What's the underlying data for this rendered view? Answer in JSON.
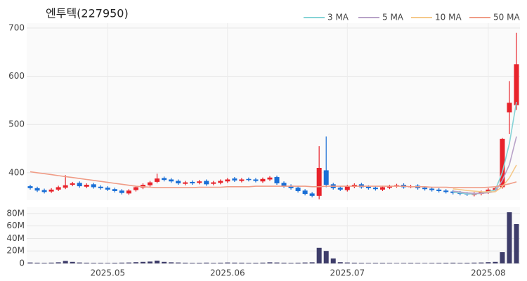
{
  "chart_data": {
    "type": "candlestick",
    "title": "엔투텍(227950)",
    "categories": [
      null,
      null,
      null,
      null,
      null,
      null,
      null,
      null,
      null,
      null,
      null,
      "2025.05",
      null,
      null,
      null,
      null,
      null,
      null,
      null,
      null,
      null,
      null,
      null,
      null,
      null,
      null,
      null,
      null,
      "2025.06",
      null,
      null,
      null,
      null,
      null,
      null,
      null,
      null,
      null,
      null,
      null,
      null,
      null,
      null,
      null,
      null,
      "2025.07",
      null,
      null,
      null,
      null,
      null,
      null,
      null,
      null,
      null,
      null,
      null,
      null,
      null,
      null,
      null,
      null,
      null,
      null,
      null,
      "2025.08",
      null,
      null,
      null,
      null
    ],
    "open": [
      372,
      368,
      364,
      361,
      365,
      369,
      375,
      379,
      371,
      376,
      371,
      369,
      366,
      363,
      357,
      364,
      369,
      374,
      381,
      389,
      386,
      383,
      377,
      381,
      379,
      383,
      377,
      379,
      382,
      388,
      383,
      387,
      386,
      382,
      386,
      391,
      379,
      373,
      369,
      363,
      357,
      352,
      405,
      376,
      369,
      364,
      371,
      376,
      371,
      369,
      365,
      369,
      372,
      375,
      371,
      373,
      369,
      367,
      365,
      363,
      361,
      359,
      357,
      354,
      356,
      359,
      363,
      370,
      525,
      540
    ],
    "high": [
      375,
      371,
      367,
      368,
      373,
      395,
      381,
      382,
      378,
      379,
      374,
      372,
      369,
      366,
      366,
      373,
      378,
      383,
      398,
      392,
      389,
      386,
      383,
      384,
      385,
      386,
      383,
      386,
      389,
      391,
      389,
      390,
      389,
      390,
      393,
      394,
      382,
      376,
      372,
      366,
      360,
      455,
      475,
      379,
      372,
      375,
      378,
      379,
      374,
      372,
      373,
      375,
      377,
      378,
      375,
      376,
      372,
      370,
      368,
      366,
      364,
      362,
      360,
      360,
      363,
      368,
      371,
      472,
      590,
      690
    ],
    "low": [
      365,
      360,
      357,
      358,
      362,
      366,
      372,
      369,
      368,
      367,
      365,
      362,
      359,
      355,
      354,
      361,
      366,
      371,
      378,
      382,
      379,
      375,
      374,
      375,
      376,
      373,
      374,
      376,
      379,
      381,
      380,
      382,
      380,
      379,
      383,
      375,
      369,
      365,
      359,
      353,
      349,
      345,
      370,
      365,
      362,
      361,
      368,
      367,
      365,
      363,
      362,
      366,
      369,
      367,
      368,
      365,
      363,
      361,
      359,
      357,
      355,
      353,
      352,
      351,
      353,
      356,
      360,
      367,
      480,
      530
    ],
    "close": [
      368,
      363,
      360,
      365,
      370,
      374,
      378,
      372,
      375,
      370,
      368,
      365,
      362,
      358,
      363,
      370,
      375,
      380,
      388,
      385,
      382,
      378,
      380,
      378,
      382,
      376,
      380,
      383,
      386,
      384,
      386,
      385,
      383,
      387,
      390,
      378,
      372,
      368,
      362,
      356,
      352,
      410,
      375,
      368,
      365,
      372,
      375,
      370,
      368,
      366,
      370,
      372,
      374,
      370,
      372,
      368,
      366,
      364,
      362,
      360,
      358,
      356,
      355,
      357,
      360,
      365,
      368,
      470,
      545,
      625
    ],
    "up_color": "#e8232b",
    "down_color": "#1a6fd6",
    "ylim": [
      343,
      710
    ],
    "yticks": [
      400,
      500,
      600,
      700
    ],
    "series": [
      {
        "name": "3 MA",
        "color": "#86d3d6",
        "values": [
          null,
          null,
          null,
          null,
          null,
          null,
          null,
          null,
          null,
          null,
          null,
          null,
          null,
          null,
          null,
          null,
          null,
          null,
          null,
          null,
          null,
          null,
          null,
          null,
          null,
          null,
          null,
          null,
          null,
          null,
          null,
          null,
          null,
          null,
          null,
          null,
          null,
          null,
          null,
          null,
          null,
          null,
          null,
          null,
          null,
          null,
          null,
          null,
          null,
          null,
          null,
          null,
          null,
          null,
          null,
          null,
          null,
          null,
          null,
          null,
          360,
          358,
          356.3,
          356,
          357.3,
          360.7,
          364.3,
          401,
          461,
          546.7
        ]
      },
      {
        "name": "5 MA",
        "color": "#b8a2c8",
        "values": [
          null,
          null,
          null,
          null,
          null,
          null,
          null,
          null,
          null,
          null,
          null,
          null,
          null,
          null,
          null,
          null,
          null,
          null,
          null,
          null,
          null,
          null,
          null,
          null,
          null,
          null,
          null,
          null,
          null,
          null,
          null,
          null,
          null,
          null,
          null,
          null,
          null,
          null,
          null,
          null,
          null,
          null,
          null,
          null,
          null,
          null,
          null,
          null,
          null,
          null,
          null,
          null,
          null,
          null,
          null,
          null,
          null,
          null,
          null,
          null,
          362,
          360,
          358.2,
          357.2,
          357.2,
          358.6,
          361,
          384,
          417,
          475
        ]
      },
      {
        "name": "10 MA",
        "color": "#f5c98a",
        "values": [
          null,
          null,
          null,
          null,
          null,
          null,
          null,
          null,
          null,
          null,
          null,
          null,
          null,
          null,
          null,
          null,
          null,
          null,
          null,
          null,
          null,
          null,
          null,
          null,
          null,
          null,
          null,
          null,
          null,
          null,
          null,
          null,
          null,
          null,
          null,
          null,
          null,
          null,
          null,
          null,
          null,
          null,
          null,
          null,
          null,
          null,
          null,
          null,
          null,
          null,
          null,
          null,
          null,
          null,
          null,
          null,
          null,
          null,
          null,
          null,
          366.6,
          365,
          363.1,
          361.8,
          360.6,
          360.3,
          360.5,
          371.1,
          389.4,
          415.9
        ]
      },
      {
        "name": "50 MA",
        "color": "#f09c86",
        "values": [
          402,
          400,
          398,
          396,
          394,
          392,
          390,
          388,
          386,
          384,
          382,
          380,
          378,
          376,
          374,
          372,
          371,
          370,
          369,
          369,
          369,
          369,
          369,
          369,
          370,
          370,
          370,
          370,
          371,
          371,
          371,
          371,
          372,
          372,
          372,
          372,
          372,
          372,
          372,
          372,
          371,
          371,
          372,
          372,
          372,
          372,
          372,
          372,
          372,
          372,
          372,
          372,
          372,
          372,
          371,
          371,
          371,
          370,
          370,
          370,
          369,
          369,
          369,
          369,
          369,
          370,
          371,
          374,
          377,
          381
        ]
      }
    ],
    "volume": [
      1500000,
      1200000,
      1000000,
      1300000,
      1800000,
      4000000,
      2500000,
      1500000,
      1200000,
      1000000,
      1000000,
      900000,
      1100000,
      1300000,
      1500000,
      2000000,
      2500000,
      3000000,
      4500000,
      2500000,
      1800000,
      1500000,
      1200000,
      1000000,
      1100000,
      1300000,
      1000000,
      1200000,
      1500000,
      1300000,
      1200000,
      1000000,
      1100000,
      1300000,
      1800000,
      1500000,
      1200000,
      1000000,
      1200000,
      1500000,
      1800000,
      25000000,
      20000000,
      8000000,
      2000000,
      1500000,
      1200000,
      1000000,
      900000,
      1000000,
      1000000,
      900000,
      800000,
      900000,
      1000000,
      900000,
      800000,
      900000,
      1000000,
      1100000,
      1200000,
      1000000,
      1100000,
      1300000,
      1500000,
      2000000,
      2500000,
      18000000,
      82000000,
      63000000
    ],
    "volume_color": "#3e3d6a",
    "volume_ylim": [
      0,
      90000000
    ],
    "volume_yticks": [
      0,
      {
        "value": 20000000,
        "label": "20M"
      },
      {
        "value": 40000000,
        "label": "40M"
      },
      {
        "value": 60000000,
        "label": "60M"
      },
      {
        "value": 80000000,
        "label": "80M"
      }
    ],
    "grid": true
  }
}
